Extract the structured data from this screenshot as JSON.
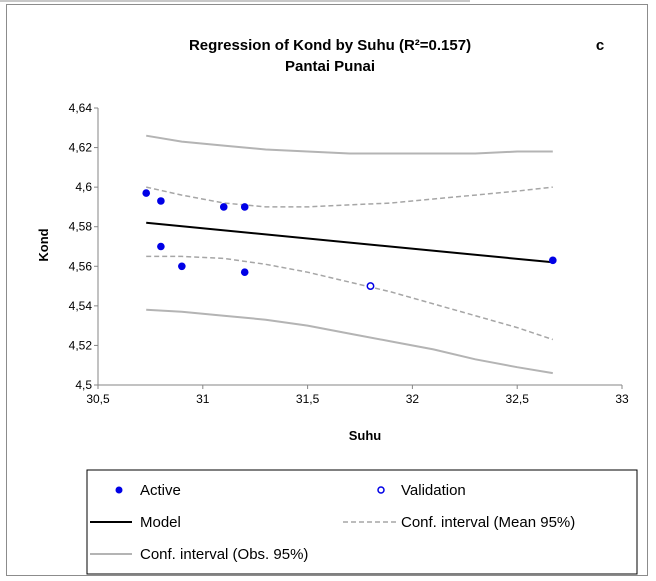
{
  "chart_data": {
    "type": "scatter",
    "title": "Regression of Kond by Suhu (R²=0.157)",
    "subtitle": "Pantai Punai",
    "panel_letter": "c",
    "xlabel": "Suhu",
    "ylabel": "Kond",
    "xlim": [
      30.5,
      33
    ],
    "ylim": [
      4.5,
      4.64
    ],
    "x_ticks": [
      "30,5",
      "31",
      "31,5",
      "32",
      "32,5",
      "33"
    ],
    "y_ticks": [
      "4,5",
      "4,52",
      "4,54",
      "4,56",
      "4,58",
      "4,6",
      "4,62",
      "4,64"
    ],
    "grid": false,
    "legend_position": "bottom",
    "colors": {
      "points": "#0000e6",
      "model": "#000000",
      "conf_mean": "#a6a6a6",
      "conf_obs": "#b4b4b4"
    },
    "series": [
      {
        "name": "Active",
        "kind": "points",
        "x": [
          30.73,
          30.8,
          30.8,
          30.9,
          31.1,
          31.2,
          31.2,
          32.67
        ],
        "y": [
          4.597,
          4.593,
          4.57,
          4.56,
          4.59,
          4.59,
          4.557,
          4.563
        ]
      },
      {
        "name": "Validation",
        "kind": "points-hollow",
        "x": [
          31.8
        ],
        "y": [
          4.55
        ]
      },
      {
        "name": "Model",
        "kind": "line",
        "x": [
          30.73,
          32.67
        ],
        "y": [
          4.582,
          4.562
        ]
      },
      {
        "name": "Conf. interval (Mean 95%)",
        "kind": "dashed-band",
        "x": [
          30.73,
          30.9,
          31.1,
          31.3,
          31.5,
          31.7,
          31.9,
          32.1,
          32.3,
          32.5,
          32.67
        ],
        "upper": [
          4.6,
          4.596,
          4.592,
          4.59,
          4.59,
          4.591,
          4.592,
          4.594,
          4.596,
          4.598,
          4.6
        ],
        "lower": [
          4.565,
          4.565,
          4.564,
          4.561,
          4.557,
          4.552,
          4.547,
          4.541,
          4.535,
          4.529,
          4.523
        ]
      },
      {
        "name": "Conf. interval (Obs. 95%)",
        "kind": "solid-band",
        "x": [
          30.73,
          30.9,
          31.1,
          31.3,
          31.5,
          31.7,
          31.9,
          32.1,
          32.3,
          32.5,
          32.67
        ],
        "upper": [
          4.626,
          4.623,
          4.621,
          4.619,
          4.618,
          4.617,
          4.617,
          4.617,
          4.617,
          4.618,
          4.618
        ],
        "lower": [
          4.538,
          4.537,
          4.535,
          4.533,
          4.53,
          4.526,
          4.522,
          4.518,
          4.513,
          4.509,
          4.506
        ]
      }
    ],
    "legend": {
      "active": "Active",
      "validation": "Validation",
      "model": "Model",
      "conf_mean": "Conf. interval (Mean 95%)",
      "conf_obs": "Conf. interval (Obs. 95%)"
    }
  }
}
